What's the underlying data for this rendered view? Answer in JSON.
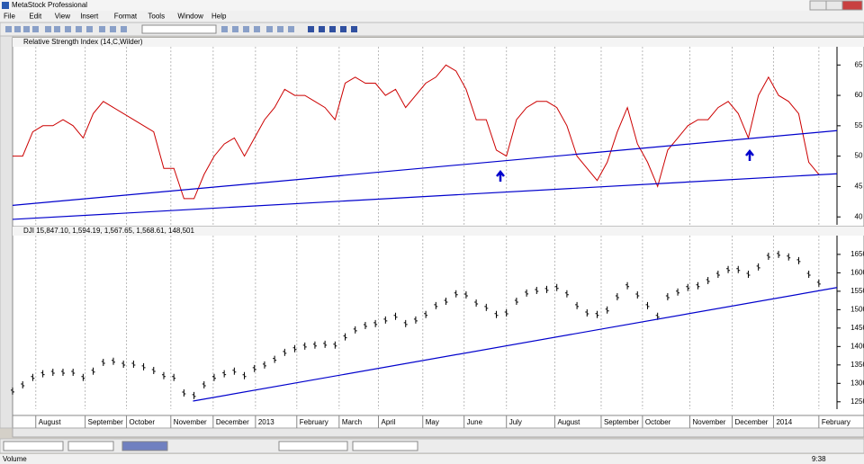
{
  "window": {
    "title": "MetaStock Professional",
    "menu": [
      "File",
      "Edit",
      "View",
      "Insert",
      "Format",
      "Tools",
      "Window",
      "Help"
    ],
    "status": [
      "Volume",
      "9:38"
    ]
  },
  "chart_data": [
    {
      "type": "line",
      "title": "Relative Strength Index (14,C,Wilder)",
      "color": "#cc0000",
      "values": [
        50,
        50,
        54,
        55,
        55,
        56,
        55,
        53,
        57,
        59,
        58,
        57,
        56,
        55,
        54,
        48,
        48,
        43,
        43,
        47,
        50,
        52,
        53,
        50,
        53,
        56,
        58,
        61,
        60,
        60,
        59,
        58,
        56,
        62,
        63,
        62,
        62,
        60,
        61,
        58,
        60,
        62,
        63,
        65,
        64,
        61,
        56,
        56,
        51,
        50,
        56,
        58,
        59,
        59,
        58,
        55,
        50,
        48,
        46,
        49,
        54,
        58,
        52,
        49,
        45,
        51,
        53,
        55,
        56,
        56,
        58,
        59,
        57,
        53,
        60,
        63,
        60,
        59,
        57,
        49,
        47
      ],
      "xlim": [
        0,
        81.8
      ],
      "ylim": [
        38.7,
        68
      ],
      "yticks": [
        40,
        45,
        50,
        55,
        60,
        65
      ],
      "trendlines": [
        {
          "x": [
            0,
            81.8
          ],
          "y": [
            41.9,
            54.2
          ],
          "color": "#0000cc"
        },
        {
          "x": [
            0,
            81.8
          ],
          "y": [
            39.6,
            47.1
          ],
          "color": "#0000cc"
        }
      ]
    },
    {
      "type": "stock",
      "title": "DJI 15,847.10, 1,594.19, 1,567.65, 1,568.61, 148,501",
      "color": "#000000",
      "values": [
        1279,
        1296,
        1316,
        1326,
        1330,
        1330,
        1330,
        1316,
        1333,
        1357,
        1360,
        1352,
        1352,
        1345,
        1335,
        1321,
        1316,
        1274,
        1267,
        1296,
        1316,
        1326,
        1333,
        1321,
        1340,
        1350,
        1365,
        1384,
        1394,
        1401,
        1404,
        1406,
        1404,
        1426,
        1445,
        1457,
        1462,
        1472,
        1482,
        1462,
        1472,
        1487,
        1511,
        1523,
        1543,
        1540,
        1518,
        1506,
        1487,
        1491,
        1523,
        1545,
        1552,
        1555,
        1560,
        1543,
        1511,
        1491,
        1487,
        1499,
        1535,
        1565,
        1540,
        1511,
        1482,
        1535,
        1548,
        1560,
        1565,
        1579,
        1596,
        1609,
        1609,
        1596,
        1616,
        1645,
        1650,
        1643,
        1633,
        1596,
        1572
      ],
      "xlim": [
        0,
        81.8
      ],
      "ylim": [
        1230,
        1701
      ],
      "yticks": [
        1250,
        1300,
        1350,
        1400,
        1450,
        1500,
        1550,
        1600,
        1650
      ],
      "xticks": [
        {
          "value": 2.3,
          "label": "August"
        },
        {
          "value": 7.2,
          "label": "September"
        },
        {
          "value": 11.3,
          "label": "October"
        },
        {
          "value": 15.7,
          "label": "November"
        },
        {
          "value": 19.9,
          "label": "December"
        },
        {
          "value": 24.1,
          "label": "2013"
        },
        {
          "value": 28.2,
          "label": "February"
        },
        {
          "value": 32.4,
          "label": "March"
        },
        {
          "value": 36.3,
          "label": "April"
        },
        {
          "value": 40.7,
          "label": "May"
        },
        {
          "value": 44.8,
          "label": "June"
        },
        {
          "value": 49,
          "label": "July"
        },
        {
          "value": 53.8,
          "label": "August"
        },
        {
          "value": 58.4,
          "label": "September"
        },
        {
          "value": 62.5,
          "label": "October"
        },
        {
          "value": 67.2,
          "label": "November"
        },
        {
          "value": 71.4,
          "label": "December"
        },
        {
          "value": 75.5,
          "label": "2014"
        },
        {
          "value": 80,
          "label": "February"
        }
      ],
      "trendlines": [
        {
          "x": [
            17.9,
            81.8
          ],
          "y": [
            1252,
            1560
          ],
          "color": "#0000cc"
        }
      ]
    }
  ]
}
